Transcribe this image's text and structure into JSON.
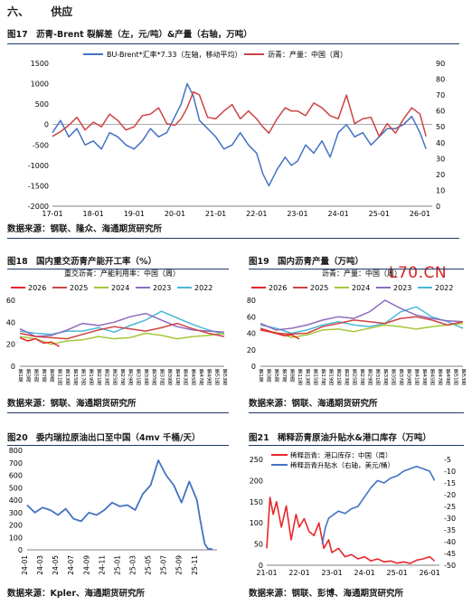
{
  "section": {
    "number": "六、",
    "title": "供应"
  },
  "logo": "L70.CN",
  "charts": [
    {
      "label": "图17",
      "title": "沥青-Brent 裂解差（左，元/吨）&产量（右轴，万吨）",
      "source": "数据来源：钢联、隆众、海通期货研究所"
    },
    {
      "label": "图18",
      "title": "国内重交沥青产能开工率（%）",
      "source": "数据来源：钢联、海通期货研究所"
    },
    {
      "label": "图19",
      "title": "国内沥青产量（万吨）",
      "source": "数据来源：钢联、海通期货研究所"
    },
    {
      "label": "图20",
      "title": "委内瑞拉原油出口至中国（4mv 千桶/天）",
      "source": "数据来源：Kpler、海通期货研究所"
    },
    {
      "label": "图21",
      "title": "稀释沥青原油升贴水&港口库存（万吨）",
      "source": "数据来源：钢联、彭博、海通期货研究所"
    }
  ],
  "colors": {
    "blue": "#4472c4",
    "red": "#cc4444",
    "orange": "#ed7d31",
    "green": "#a5c73a",
    "purple": "#8e6bbf",
    "cyan": "#4bb8d6",
    "bright_red": "#e8262b",
    "rule": "#1f3a68"
  },
  "chart_data": [
    {
      "type": "line",
      "legend_position": "top",
      "x_ticks": [
        "17-01",
        "18-01",
        "19-01",
        "20-01",
        "21-01",
        "22-01",
        "23-01",
        "24-01",
        "25-01",
        "26-01"
      ],
      "left_axis": {
        "range": [
          -2000,
          1500
        ],
        "ticks": [
          "-2000",
          "-1500",
          "-1000",
          "-500",
          "0",
          "500",
          "1000",
          "1500"
        ]
      },
      "right_axis": {
        "range": [
          0,
          90
        ],
        "ticks": [
          "0",
          "10",
          "20",
          "30",
          "40",
          "50",
          "60",
          "70",
          "80",
          "90"
        ]
      },
      "series": [
        {
          "name": "BU-Brent*汇率*7.33（左轴，移动平均）",
          "axis": "left",
          "color": "#4472c4",
          "x": [
            2017.0,
            2017.2,
            2017.4,
            2017.6,
            2017.8,
            2018.0,
            2018.2,
            2018.4,
            2018.6,
            2018.8,
            2019.0,
            2019.2,
            2019.4,
            2019.6,
            2019.8,
            2020.0,
            2020.15,
            2020.3,
            2020.45,
            2020.6,
            2020.8,
            2021.0,
            2021.2,
            2021.4,
            2021.6,
            2021.8,
            2022.0,
            2022.15,
            2022.3,
            2022.5,
            2022.7,
            2022.85,
            2023.0,
            2023.2,
            2023.4,
            2023.6,
            2023.8,
            2024.0,
            2024.2,
            2024.4,
            2024.6,
            2024.8,
            2025.0,
            2025.2,
            2025.4,
            2025.6,
            2025.8,
            2026.0,
            2026.15
          ],
          "y": [
            -200,
            100,
            -300,
            -100,
            -500,
            -400,
            -600,
            -200,
            -300,
            -500,
            -600,
            -400,
            -100,
            -300,
            -200,
            200,
            500,
            1000,
            700,
            100,
            -100,
            -300,
            -600,
            -500,
            -200,
            -500,
            -700,
            -1200,
            -1500,
            -1100,
            -800,
            -1000,
            -900,
            -500,
            -700,
            -400,
            -800,
            -200,
            0,
            -300,
            -200,
            -500,
            -300,
            -100,
            -100,
            0,
            200,
            -200,
            -600
          ]
        },
        {
          "name": "沥青：产量：中国（周）",
          "axis": "right",
          "color": "#cc4444",
          "x": [
            2017.0,
            2017.2,
            2017.4,
            2017.6,
            2017.8,
            2018.0,
            2018.2,
            2018.4,
            2018.6,
            2018.8,
            2019.0,
            2019.2,
            2019.4,
            2019.6,
            2019.8,
            2020.0,
            2020.15,
            2020.3,
            2020.45,
            2020.6,
            2020.8,
            2021.0,
            2021.2,
            2021.4,
            2021.6,
            2021.8,
            2022.0,
            2022.15,
            2022.3,
            2022.5,
            2022.7,
            2022.85,
            2023.0,
            2023.2,
            2023.4,
            2023.6,
            2023.8,
            2024.0,
            2024.2,
            2024.4,
            2024.6,
            2024.8,
            2025.0,
            2025.2,
            2025.4,
            2025.6,
            2025.8,
            2026.0,
            2026.15
          ],
          "y": [
            44,
            47,
            51,
            56,
            48,
            53,
            50,
            58,
            54,
            48,
            50,
            57,
            58,
            62,
            52,
            51,
            55,
            62,
            72,
            70,
            56,
            55,
            60,
            64,
            55,
            60,
            55,
            50,
            46,
            55,
            62,
            60,
            60,
            57,
            65,
            62,
            57,
            55,
            70,
            52,
            55,
            56,
            44,
            52,
            46,
            55,
            62,
            58,
            44
          ]
        }
      ]
    },
    {
      "type": "line",
      "title": "重交沥青：产能利用率：中国（周）",
      "legend_position": "top",
      "x_ticks": [
        "第1周",
        "第3周",
        "第5周",
        "第7周",
        "第9周",
        "第11周",
        "第13周",
        "第15周",
        "第17周",
        "第19周",
        "第21周",
        "第23周",
        "第25周",
        "第27周",
        "第29周",
        "第31周",
        "第33周",
        "第35周",
        "第37周",
        "第39周",
        "第41周",
        "第43周",
        "第45周",
        "第47周",
        "第49周",
        "第51周",
        "第53周"
      ],
      "y_axis": {
        "range": [
          0,
          60
        ],
        "ticks": [
          "0",
          "20",
          "40",
          "60"
        ]
      },
      "series": [
        {
          "name": "2026",
          "color": "#e8262b",
          "x": [
            1,
            3,
            5,
            7,
            9,
            11
          ],
          "y": [
            26,
            23,
            25,
            21,
            22,
            18
          ]
        },
        {
          "name": "2025",
          "color": "#cc4444",
          "x": [
            1,
            5,
            9,
            13,
            17,
            21,
            25,
            29,
            33,
            37,
            41,
            45,
            49,
            53
          ],
          "y": [
            30,
            27,
            26,
            25,
            29,
            33,
            36,
            34,
            32,
            35,
            39,
            34,
            30,
            27
          ]
        },
        {
          "name": "2024",
          "color": "#a5c73a",
          "x": [
            1,
            5,
            9,
            13,
            17,
            21,
            25,
            29,
            33,
            37,
            41,
            45,
            49,
            53
          ],
          "y": [
            27,
            25,
            20,
            23,
            24,
            27,
            25,
            26,
            30,
            28,
            25,
            27,
            28,
            30
          ]
        },
        {
          "name": "2023",
          "color": "#8e6bbf",
          "x": [
            1,
            5,
            9,
            13,
            17,
            21,
            25,
            29,
            33,
            37,
            41,
            45,
            49,
            53
          ],
          "y": [
            34,
            27,
            28,
            33,
            39,
            37,
            40,
            45,
            48,
            42,
            36,
            33,
            32,
            31
          ]
        },
        {
          "name": "2022",
          "color": "#4bb8d6",
          "x": [
            1,
            5,
            9,
            13,
            17,
            21,
            25,
            29,
            33,
            37,
            41,
            45,
            49,
            53
          ],
          "y": [
            32,
            30,
            29,
            32,
            32,
            35,
            31,
            37,
            42,
            50,
            44,
            38,
            33,
            29
          ]
        }
      ]
    },
    {
      "type": "line",
      "title": "沥青：产量：中国（周）",
      "legend_position": "top",
      "x_ticks": [
        "第1周",
        "第3周",
        "第5周",
        "第7周",
        "第9周",
        "第11周",
        "第13周",
        "第15周",
        "第17周",
        "第19周",
        "第21周",
        "第23周",
        "第25周",
        "第27周",
        "第29周",
        "第31周",
        "第33周",
        "第35周",
        "第37周",
        "第39周",
        "第41周",
        "第43周",
        "第45周",
        "第47周",
        "第49周",
        "第51周",
        "第53周"
      ],
      "y_axis": {
        "range": [
          0,
          80
        ],
        "ticks": [
          "0",
          "20",
          "40",
          "60",
          "80"
        ]
      },
      "series": [
        {
          "name": "2026",
          "color": "#e8262b",
          "x": [
            1,
            3,
            5,
            7,
            9,
            11
          ],
          "y": [
            44,
            42,
            40,
            37,
            38,
            33
          ]
        },
        {
          "name": "2025",
          "color": "#cc4444",
          "x": [
            1,
            5,
            9,
            13,
            17,
            21,
            25,
            29,
            33,
            37,
            41,
            45,
            49,
            53
          ],
          "y": [
            46,
            40,
            39,
            40,
            48,
            52,
            56,
            54,
            52,
            58,
            60,
            56,
            50,
            54
          ]
        },
        {
          "name": "2024",
          "color": "#a5c73a",
          "x": [
            1,
            5,
            9,
            13,
            17,
            21,
            25,
            29,
            33,
            37,
            41,
            45,
            49,
            53
          ],
          "y": [
            44,
            41,
            35,
            38,
            44,
            45,
            42,
            46,
            50,
            48,
            45,
            48,
            50,
            52
          ]
        },
        {
          "name": "2023",
          "color": "#8e6bbf",
          "x": [
            1,
            5,
            9,
            13,
            17,
            21,
            25,
            29,
            33,
            37,
            41,
            45,
            49,
            53
          ],
          "y": [
            52,
            44,
            46,
            50,
            56,
            60,
            58,
            66,
            80,
            70,
            62,
            58,
            55,
            54
          ]
        },
        {
          "name": "2022",
          "color": "#4bb8d6",
          "x": [
            1,
            5,
            9,
            13,
            17,
            21,
            25,
            29,
            33,
            37,
            41,
            45,
            49,
            53
          ],
          "y": [
            50,
            46,
            40,
            44,
            50,
            54,
            50,
            48,
            52,
            66,
            72,
            60,
            54,
            46
          ]
        }
      ]
    },
    {
      "type": "line",
      "x_ticks": [
        "24-01",
        "24-03",
        "24-05",
        "24-07",
        "24-09",
        "24-11",
        "25-01",
        "25-03",
        "25-05",
        "25-07",
        "25-09",
        "25-11"
      ],
      "y_axis": {
        "range": [
          0,
          800
        ],
        "ticks": [
          "0",
          "100",
          "200",
          "300",
          "400",
          "500",
          "600",
          "700",
          "800"
        ]
      },
      "series": [
        {
          "name": "",
          "color": "#4472c4",
          "x": [
            0,
            0.5,
            1,
            1.5,
            2,
            2.5,
            3,
            3.5,
            4,
            4.5,
            5,
            5.5,
            6,
            6.5,
            7,
            7.5,
            8,
            8.5,
            9,
            9.5,
            10,
            10.5,
            11,
            11.2,
            11.5,
            11.7,
            12
          ],
          "y": [
            360,
            300,
            340,
            320,
            280,
            330,
            250,
            230,
            300,
            280,
            320,
            380,
            350,
            360,
            320,
            450,
            520,
            720,
            600,
            520,
            380,
            550,
            400,
            250,
            50,
            10,
            5
          ]
        }
      ]
    },
    {
      "type": "line",
      "legend_position": "top-left",
      "x_ticks": [
        "21-01",
        "22-01",
        "23-01",
        "24-01",
        "25-01",
        "26-01"
      ],
      "left_axis": {
        "range": [
          0,
          250
        ],
        "ticks": [
          "0",
          "50",
          "100",
          "150",
          "200",
          "250"
        ]
      },
      "right_axis": {
        "range": [
          -50,
          -5
        ],
        "ticks": [
          "-50",
          "-45",
          "-40",
          "-35",
          "-30",
          "-25",
          "-20",
          "-15",
          "-10",
          "-5"
        ]
      },
      "series": [
        {
          "name": "稀释沥青：港口库存：中国（周）",
          "axis": "left",
          "color": "#e8262b",
          "x": [
            2021.0,
            2021.1,
            2021.2,
            2021.3,
            2021.45,
            2021.6,
            2021.75,
            2021.9,
            2022.0,
            2022.15,
            2022.3,
            2022.45,
            2022.6,
            2022.75,
            2022.9,
            2023.0,
            2023.2,
            2023.4,
            2023.6,
            2023.8,
            2024.0,
            2024.2,
            2024.4,
            2024.6,
            2024.8,
            2025.0,
            2025.2,
            2025.4,
            2025.6,
            2025.8,
            2026.0,
            2026.15
          ],
          "y": [
            40,
            160,
            120,
            150,
            90,
            140,
            60,
            120,
            90,
            110,
            80,
            70,
            100,
            40,
            60,
            30,
            40,
            20,
            25,
            15,
            20,
            10,
            15,
            8,
            10,
            5,
            8,
            4,
            12,
            15,
            20,
            10
          ]
        },
        {
          "name": "稀释沥青升贴水（右轴，美元/桶）",
          "axis": "right",
          "color": "#4472c4",
          "x": [
            2022.7,
            2022.8,
            2022.9,
            2023.0,
            2023.2,
            2023.4,
            2023.6,
            2023.8,
            2024.0,
            2024.2,
            2024.4,
            2024.6,
            2024.8,
            2025.0,
            2025.2,
            2025.4,
            2025.6,
            2025.8,
            2026.0,
            2026.15
          ],
          "y": [
            -41,
            -34,
            -30,
            -29,
            -27,
            -28,
            -26,
            -25,
            -21,
            -17,
            -14,
            -15,
            -13,
            -12,
            -10,
            -9,
            -8,
            -9,
            -10,
            -14
          ]
        }
      ]
    }
  ]
}
